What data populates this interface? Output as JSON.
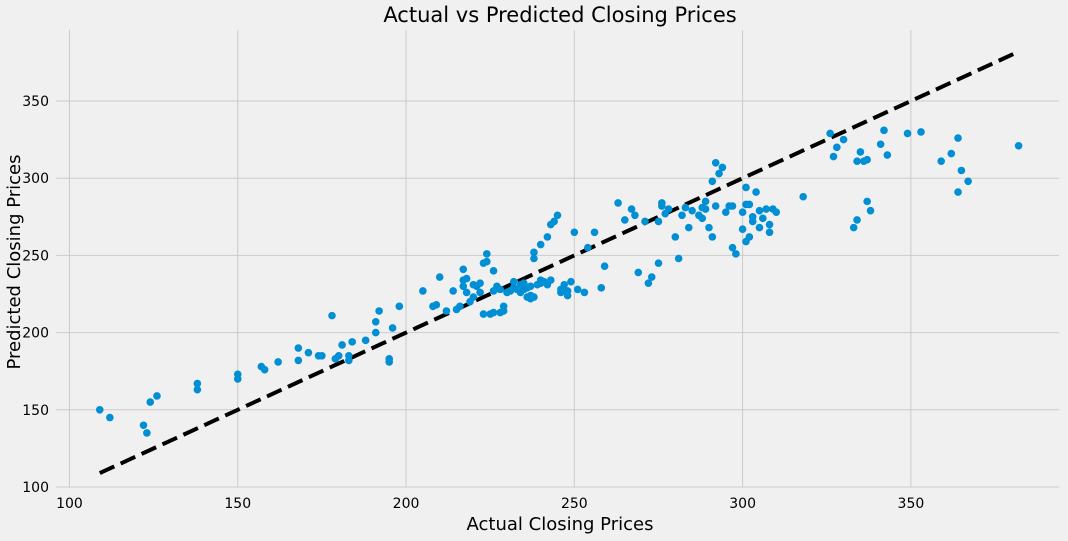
{
  "chart_data": {
    "type": "scatter",
    "title": "Actual vs Predicted Closing Prices",
    "xlabel": "Actual Closing Prices",
    "ylabel": "Predicted Closing Prices",
    "xlim": [
      96,
      394
    ],
    "ylim": [
      100,
      396
    ],
    "xticks": [
      100,
      150,
      200,
      250,
      300,
      350
    ],
    "yticks": [
      100,
      150,
      200,
      250,
      300,
      350
    ],
    "grid": true,
    "colors": {
      "points": "#008fd5",
      "reference_line": "#000000",
      "background": "#f0f0f0",
      "grid": "#cbcbcb"
    },
    "reference_line": {
      "from": [
        109,
        109
      ],
      "to": [
        382,
        382
      ],
      "style": "dashed"
    },
    "points": [
      [
        109,
        150
      ],
      [
        112,
        145
      ],
      [
        122,
        140
      ],
      [
        123,
        135
      ],
      [
        124,
        155
      ],
      [
        126,
        159
      ],
      [
        138,
        163
      ],
      [
        138,
        167
      ],
      [
        150,
        170
      ],
      [
        150,
        173
      ],
      [
        157,
        178
      ],
      [
        158,
        176
      ],
      [
        162,
        181
      ],
      [
        168,
        182
      ],
      [
        168,
        190
      ],
      [
        171,
        187
      ],
      [
        174,
        185
      ],
      [
        175,
        185
      ],
      [
        178,
        211
      ],
      [
        179,
        183
      ],
      [
        180,
        185
      ],
      [
        181,
        192
      ],
      [
        183,
        182
      ],
      [
        183,
        185
      ],
      [
        184,
        194
      ],
      [
        188,
        195
      ],
      [
        191,
        200
      ],
      [
        191,
        207
      ],
      [
        192,
        214
      ],
      [
        195,
        181
      ],
      [
        195,
        183
      ],
      [
        196,
        203
      ],
      [
        198,
        217
      ],
      [
        205,
        227
      ],
      [
        208,
        217
      ],
      [
        209,
        218
      ],
      [
        210,
        236
      ],
      [
        212,
        214
      ],
      [
        214,
        227
      ],
      [
        215,
        215
      ],
      [
        216,
        217
      ],
      [
        217,
        230
      ],
      [
        217,
        234
      ],
      [
        217,
        241
      ],
      [
        218,
        235
      ],
      [
        218,
        226
      ],
      [
        219,
        220
      ],
      [
        220,
        223
      ],
      [
        220,
        231
      ],
      [
        221,
        230
      ],
      [
        222,
        226
      ],
      [
        222,
        232
      ],
      [
        223,
        245
      ],
      [
        223,
        212
      ],
      [
        224,
        251
      ],
      [
        224,
        246
      ],
      [
        225,
        212
      ],
      [
        226,
        213
      ],
      [
        226,
        227
      ],
      [
        226,
        240
      ],
      [
        227,
        230
      ],
      [
        228,
        213
      ],
      [
        228,
        228
      ],
      [
        229,
        217
      ],
      [
        229,
        214
      ],
      [
        230,
        226
      ],
      [
        231,
        227
      ],
      [
        232,
        229
      ],
      [
        232,
        233
      ],
      [
        233,
        228
      ],
      [
        234,
        226
      ],
      [
        234,
        231
      ],
      [
        235,
        232
      ],
      [
        235,
        228
      ],
      [
        236,
        223
      ],
      [
        236,
        229
      ],
      [
        237,
        222
      ],
      [
        237,
        224
      ],
      [
        237,
        230
      ],
      [
        238,
        248
      ],
      [
        238,
        252
      ],
      [
        238,
        223
      ],
      [
        239,
        231
      ],
      [
        240,
        232
      ],
      [
        240,
        257
      ],
      [
        240,
        234
      ],
      [
        241,
        233
      ],
      [
        242,
        262
      ],
      [
        242,
        231
      ],
      [
        243,
        234
      ],
      [
        243,
        270
      ],
      [
        244,
        272
      ],
      [
        245,
        276
      ],
      [
        246,
        228
      ],
      [
        246,
        226
      ],
      [
        247,
        231
      ],
      [
        248,
        224
      ],
      [
        248,
        227
      ],
      [
        249,
        233
      ],
      [
        250,
        265
      ],
      [
        251,
        228
      ],
      [
        253,
        226
      ],
      [
        254,
        255
      ],
      [
        256,
        265
      ],
      [
        258,
        229
      ],
      [
        259,
        243
      ],
      [
        263,
        284
      ],
      [
        265,
        273
      ],
      [
        267,
        280
      ],
      [
        268,
        276
      ],
      [
        269,
        239
      ],
      [
        271,
        272
      ],
      [
        272,
        232
      ],
      [
        273,
        236
      ],
      [
        275,
        245
      ],
      [
        275,
        272
      ],
      [
        276,
        284
      ],
      [
        276,
        282
      ],
      [
        277,
        277
      ],
      [
        278,
        280
      ],
      [
        280,
        262
      ],
      [
        281,
        248
      ],
      [
        282,
        276
      ],
      [
        283,
        281
      ],
      [
        284,
        268
      ],
      [
        285,
        279
      ],
      [
        287,
        276
      ],
      [
        288,
        281
      ],
      [
        288,
        274
      ],
      [
        289,
        285
      ],
      [
        289,
        280
      ],
      [
        290,
        268
      ],
      [
        291,
        262
      ],
      [
        291,
        298
      ],
      [
        292,
        282
      ],
      [
        292,
        310
      ],
      [
        293,
        303
      ],
      [
        294,
        307
      ],
      [
        295,
        278
      ],
      [
        296,
        282
      ],
      [
        297,
        282
      ],
      [
        297,
        255
      ],
      [
        298,
        251
      ],
      [
        300,
        267
      ],
      [
        300,
        278
      ],
      [
        301,
        294
      ],
      [
        301,
        283
      ],
      [
        301,
        259
      ],
      [
        302,
        262
      ],
      [
        302,
        283
      ],
      [
        303,
        272
      ],
      [
        303,
        275
      ],
      [
        304,
        291
      ],
      [
        305,
        279
      ],
      [
        305,
        268
      ],
      [
        306,
        274
      ],
      [
        307,
        280
      ],
      [
        308,
        265
      ],
      [
        308,
        270
      ],
      [
        309,
        280
      ],
      [
        310,
        278
      ],
      [
        318,
        288
      ],
      [
        326,
        329
      ],
      [
        327,
        314
      ],
      [
        328,
        320
      ],
      [
        330,
        325
      ],
      [
        333,
        268
      ],
      [
        334,
        311
      ],
      [
        334,
        273
      ],
      [
        335,
        317
      ],
      [
        336,
        311
      ],
      [
        337,
        312
      ],
      [
        337,
        285
      ],
      [
        338,
        279
      ],
      [
        341,
        322
      ],
      [
        342,
        331
      ],
      [
        343,
        315
      ],
      [
        349,
        329
      ],
      [
        353,
        330
      ],
      [
        359,
        311
      ],
      [
        362,
        316
      ],
      [
        364,
        291
      ],
      [
        364,
        326
      ],
      [
        365,
        305
      ],
      [
        367,
        298
      ],
      [
        382,
        321
      ]
    ]
  }
}
